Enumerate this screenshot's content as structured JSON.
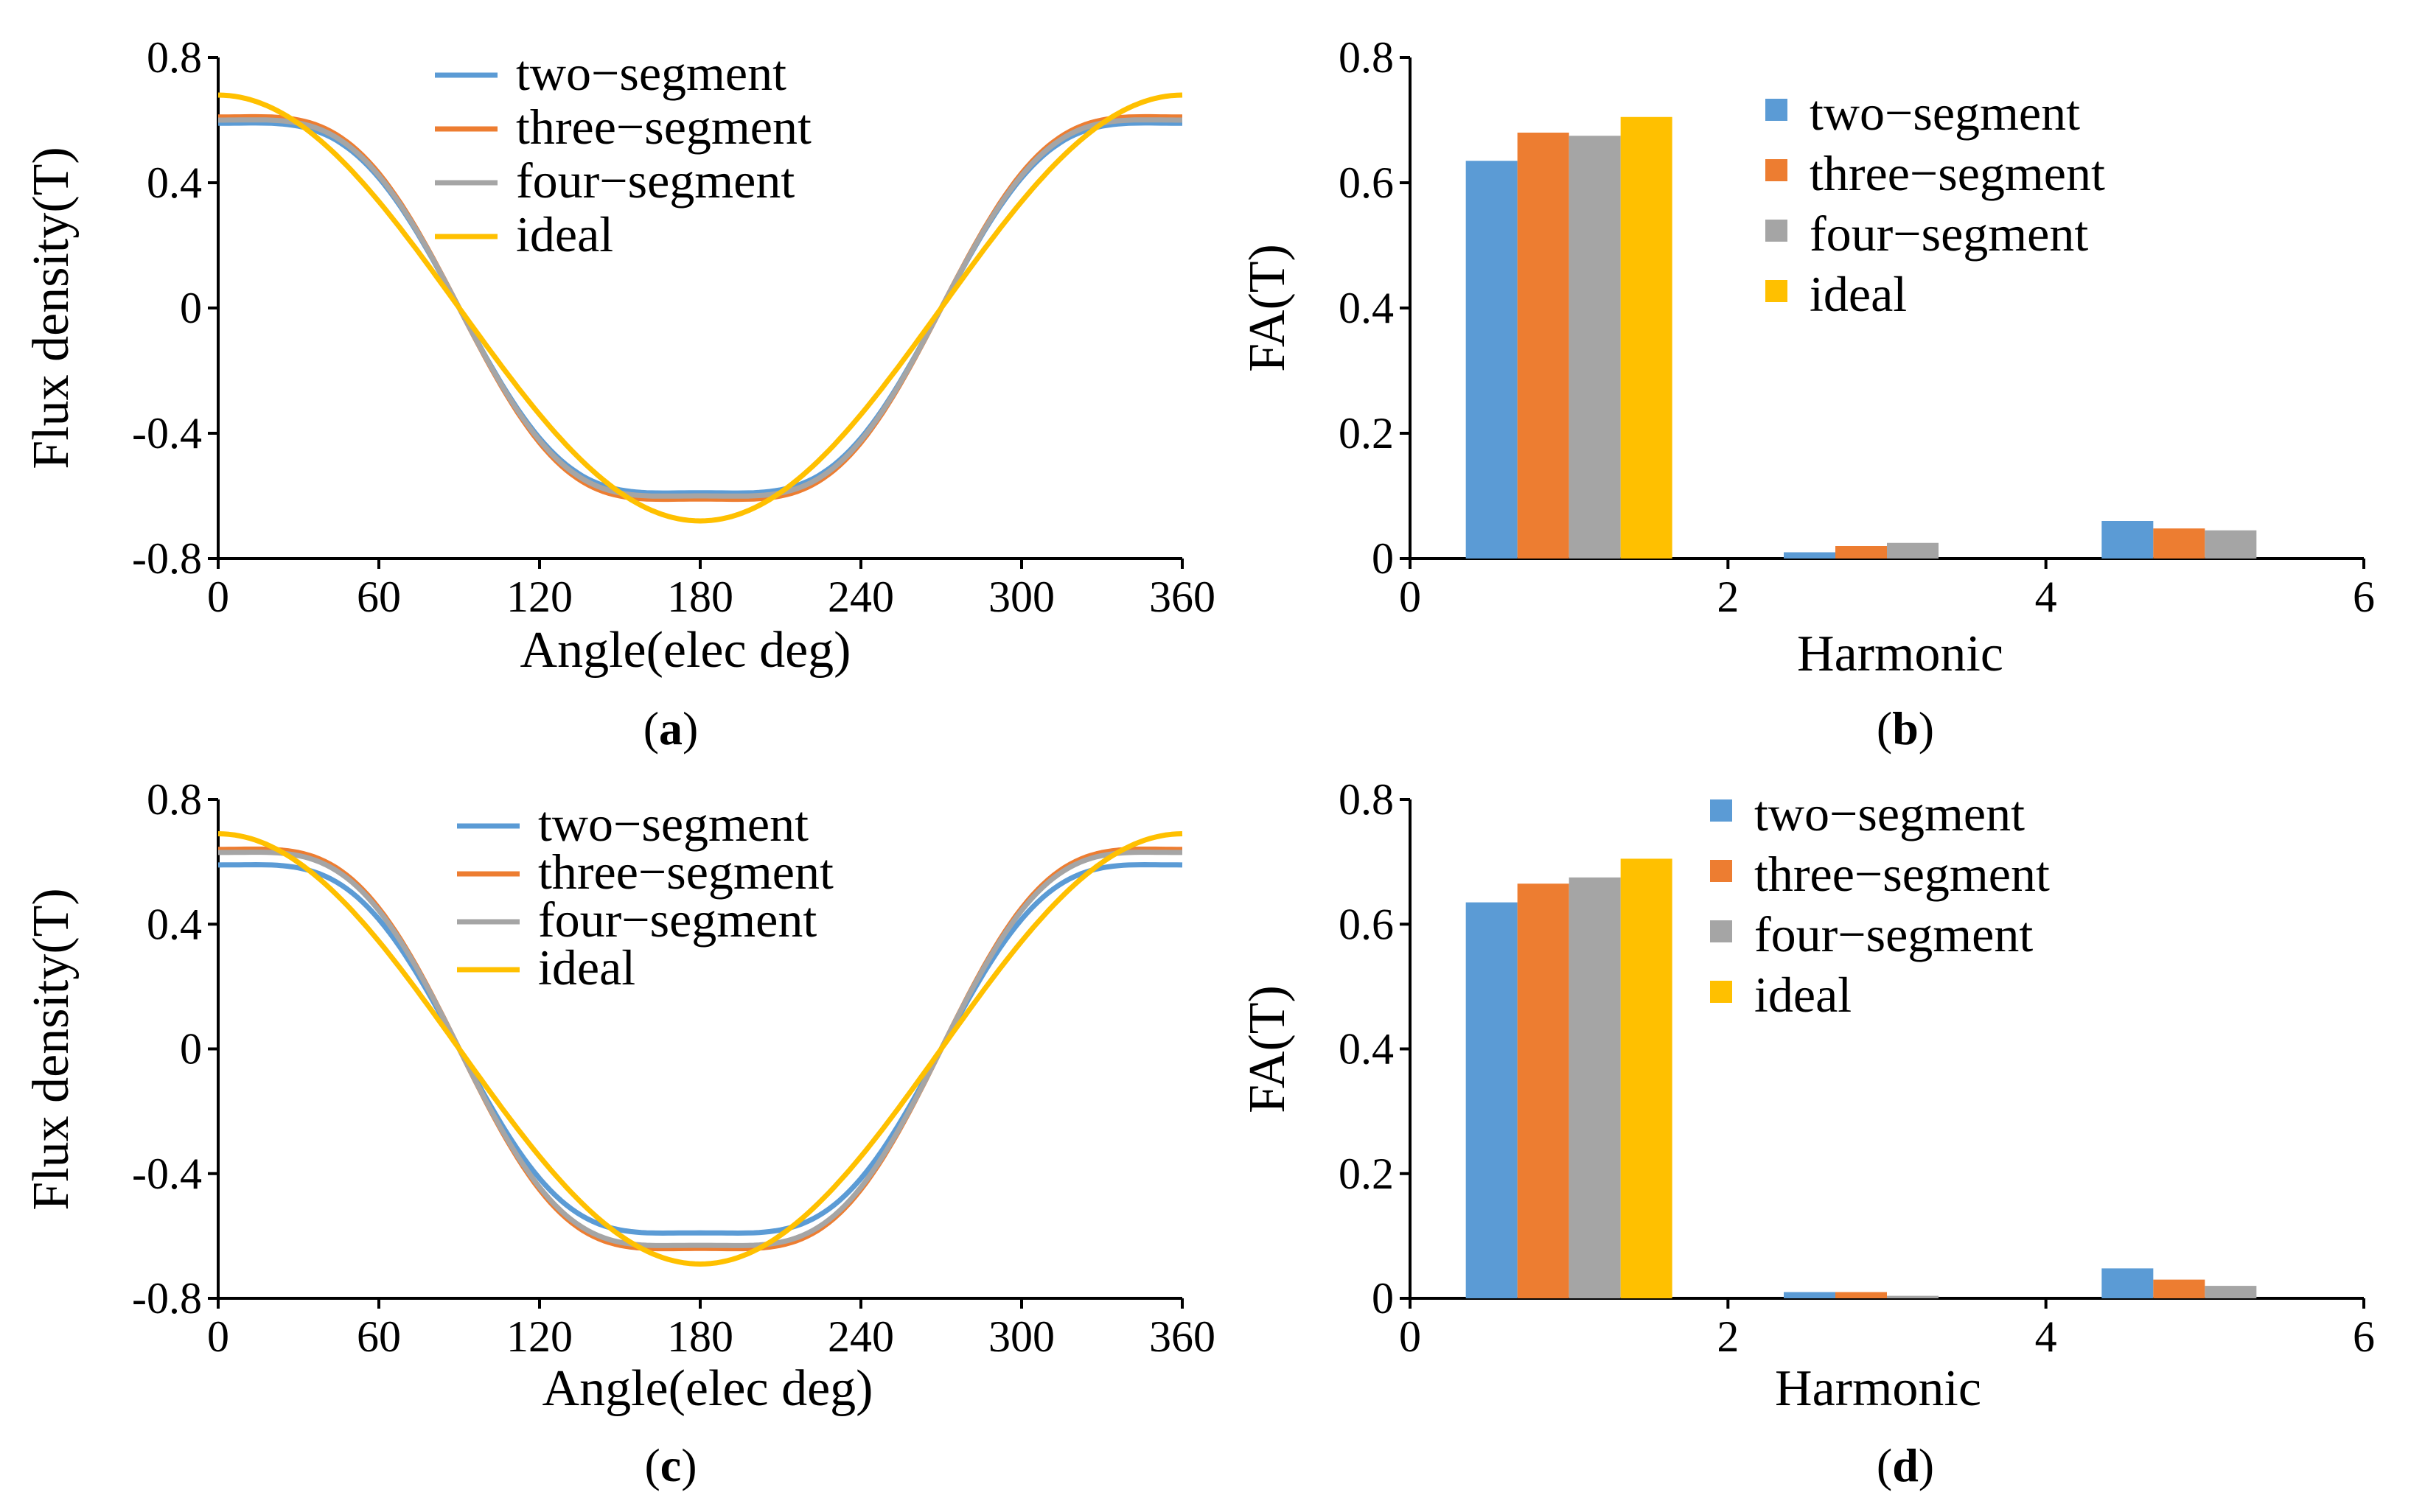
{
  "colors": {
    "two-segment": "#5B9BD5",
    "three-segment": "#ED7D31",
    "four-segment": "#A5A5A5",
    "ideal": "#FFC000"
  },
  "chart_data": [
    {
      "id": "a",
      "type": "line",
      "caption": {
        "open": "(",
        "letter": "a",
        "close": ")"
      },
      "xlabel": "Angle(elec deg)",
      "ylabel": "Flux density(T)",
      "xlim": [
        0,
        360
      ],
      "ylim": [
        -0.8,
        0.8
      ],
      "xticks": [
        0,
        60,
        120,
        180,
        240,
        300,
        360
      ],
      "xtick_labels": [
        "0",
        "60",
        "120",
        "180",
        "240",
        "300",
        "360"
      ],
      "yticks": [
        0.8,
        0.4,
        0,
        -0.4,
        -0.8
      ],
      "ytick_labels": [
        "0.8",
        "0.4",
        "0",
        "-0.4",
        "-0.8"
      ],
      "legend_position": "top-center",
      "series": [
        {
          "name": "two−segment",
          "key": "two-segment",
          "amplitude": 0.59,
          "shape": "flat-top"
        },
        {
          "name": "three−segment",
          "key": "three-segment",
          "amplitude": 0.61,
          "shape": "flat-top"
        },
        {
          "name": "four−segment",
          "key": "four-segment",
          "amplitude": 0.6,
          "shape": "flat-top"
        },
        {
          "name": "ideal",
          "key": "ideal",
          "amplitude": 0.68,
          "shape": "cosine"
        }
      ]
    },
    {
      "id": "b",
      "type": "bar",
      "caption": {
        "open": "(",
        "letter": "b",
        "close": ")"
      },
      "xlabel": "Harmonic",
      "ylabel": "FA(T)",
      "xlim": [
        0,
        6
      ],
      "ylim": [
        0,
        0.8
      ],
      "xticks": [
        0,
        2,
        4,
        6
      ],
      "xtick_labels": [
        "0",
        "2",
        "4",
        "6"
      ],
      "yticks": [
        0.8,
        0.6,
        0.4,
        0.2,
        0
      ],
      "ytick_labels": [
        "0.8",
        "0.6",
        "0.4",
        "0.2",
        "0"
      ],
      "legend_position": "top-right",
      "categories": [
        1,
        3,
        5
      ],
      "series": [
        {
          "name": "two−segment",
          "key": "two-segment",
          "values": [
            0.635,
            0.01,
            0.06
          ]
        },
        {
          "name": "three−segment",
          "key": "three-segment",
          "values": [
            0.68,
            0.02,
            0.048
          ]
        },
        {
          "name": "four−segment",
          "key": "four-segment",
          "values": [
            0.675,
            0.025,
            0.045
          ]
        },
        {
          "name": "ideal",
          "key": "ideal",
          "values": [
            0.705,
            0,
            0
          ]
        }
      ]
    },
    {
      "id": "c",
      "type": "line",
      "caption": {
        "open": "(",
        "letter": "c",
        "close": ")"
      },
      "xlabel": "Angle(elec deg)",
      "ylabel": "Flux density(T)",
      "xlim": [
        0,
        360
      ],
      "ylim": [
        -0.8,
        0.8
      ],
      "xticks": [
        0,
        60,
        120,
        180,
        240,
        300,
        360
      ],
      "xtick_labels": [
        "0",
        "60",
        "120",
        "180",
        "240",
        "300",
        "360"
      ],
      "yticks": [
        0.8,
        0.4,
        0,
        -0.4,
        -0.8
      ],
      "ytick_labels": [
        "0.8",
        "0.4",
        "0",
        "-0.4",
        "-0.8"
      ],
      "legend_position": "top-center",
      "series": [
        {
          "name": "two−segment",
          "key": "two-segment",
          "amplitude": 0.59,
          "shape": "flat-top"
        },
        {
          "name": "three−segment",
          "key": "three-segment",
          "amplitude": 0.64,
          "shape": "flat-top"
        },
        {
          "name": "four−segment",
          "key": "four-segment",
          "amplitude": 0.63,
          "shape": "flat-top"
        },
        {
          "name": "ideal",
          "key": "ideal",
          "amplitude": 0.69,
          "shape": "cosine"
        }
      ]
    },
    {
      "id": "d",
      "type": "bar",
      "caption": {
        "open": "(",
        "letter": "d",
        "close": ")"
      },
      "xlabel": "Harmonic",
      "ylabel": "FA(T)",
      "xlim": [
        0,
        6
      ],
      "ylim": [
        0,
        0.8
      ],
      "xticks": [
        0,
        2,
        4,
        6
      ],
      "xtick_labels": [
        "0",
        "2",
        "4",
        "6"
      ],
      "yticks": [
        0.8,
        0.6,
        0.4,
        0.2,
        0
      ],
      "ytick_labels": [
        "0.8",
        "0.6",
        "0.4",
        "0.2",
        "0"
      ],
      "legend_position": "top-right",
      "categories": [
        1,
        3,
        5
      ],
      "series": [
        {
          "name": "two−segment",
          "key": "two-segment",
          "values": [
            0.635,
            0.01,
            0.048
          ]
        },
        {
          "name": "three−segment",
          "key": "three-segment",
          "values": [
            0.665,
            0.01,
            0.03
          ]
        },
        {
          "name": "four−segment",
          "key": "four-segment",
          "values": [
            0.675,
            0.004,
            0.02
          ]
        },
        {
          "name": "ideal",
          "key": "ideal",
          "values": [
            0.705,
            0,
            0
          ]
        }
      ]
    }
  ]
}
